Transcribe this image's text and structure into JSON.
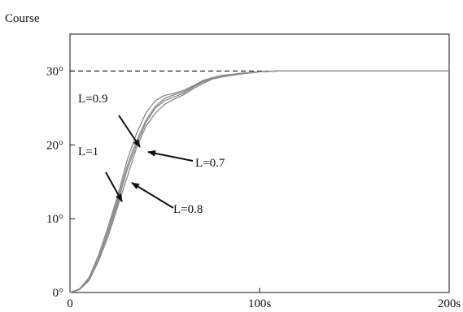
{
  "chart_data": {
    "type": "line",
    "ylabel": "Course",
    "xlabel": "",
    "xlim": [
      0,
      200
    ],
    "ylim": [
      0,
      35
    ],
    "x_ticks": [
      {
        "value": 0,
        "label": "0"
      },
      {
        "value": 100,
        "label": "100s"
      },
      {
        "value": 200,
        "label": "200s"
      }
    ],
    "y_ticks": [
      {
        "value": 0,
        "label": "0°"
      },
      {
        "value": 10,
        "label": "10°"
      },
      {
        "value": 20,
        "label": "20°"
      },
      {
        "value": 30,
        "label": "30°"
      }
    ],
    "reference_line": {
      "y": 30,
      "style": "dashed"
    },
    "series": [
      {
        "name": "L=1",
        "x": [
          0,
          5,
          10,
          15,
          20,
          25,
          30,
          35,
          40,
          45,
          50,
          55,
          60,
          65,
          70,
          75,
          80,
          90,
          100,
          110,
          120,
          140,
          160,
          180,
          200
        ],
        "values": [
          0,
          0.4,
          1.8,
          4.5,
          8.0,
          12.0,
          16.5,
          20.0,
          23.0,
          25.0,
          26.0,
          26.5,
          27.0,
          27.8,
          28.5,
          29.0,
          29.3,
          29.6,
          29.9,
          30.0,
          30.0,
          30.0,
          30.0,
          30.0,
          30.0
        ]
      },
      {
        "name": "L=0.9",
        "x": [
          0,
          5,
          10,
          15,
          20,
          25,
          30,
          35,
          40,
          45,
          50,
          55,
          60,
          65,
          70,
          75,
          80,
          90,
          100,
          110,
          120,
          140,
          160,
          180,
          200
        ],
        "values": [
          0,
          0.5,
          2.0,
          5.0,
          8.8,
          13.0,
          17.8,
          21.5,
          24.3,
          26.0,
          26.7,
          27.0,
          27.4,
          28.0,
          28.7,
          29.1,
          29.4,
          29.7,
          29.9,
          30.0,
          30.0,
          30.0,
          30.0,
          30.0,
          30.0
        ]
      },
      {
        "name": "L=0.8",
        "x": [
          0,
          5,
          10,
          15,
          20,
          25,
          30,
          35,
          40,
          45,
          50,
          55,
          60,
          65,
          70,
          75,
          80,
          90,
          100,
          110,
          120,
          140,
          160,
          180,
          200
        ],
        "values": [
          0,
          0.4,
          1.6,
          4.2,
          7.5,
          11.5,
          15.5,
          19.5,
          22.5,
          24.3,
          25.5,
          26.2,
          26.8,
          27.6,
          28.3,
          28.9,
          29.2,
          29.6,
          29.9,
          30.0,
          30.0,
          30.0,
          30.0,
          30.0,
          30.0
        ]
      },
      {
        "name": "L=0.7",
        "x": [
          0,
          5,
          10,
          15,
          20,
          25,
          30,
          35,
          40,
          45,
          50,
          55,
          60,
          65,
          70,
          75,
          80,
          90,
          100,
          110,
          120,
          140,
          160,
          180,
          200
        ],
        "values": [
          0,
          0.4,
          1.7,
          4.6,
          8.3,
          12.5,
          17.0,
          20.5,
          23.3,
          25.2,
          26.3,
          26.8,
          27.2,
          27.9,
          28.6,
          29.0,
          29.3,
          29.7,
          29.9,
          30.0,
          30.0,
          30.0,
          30.0,
          30.0,
          30.0
        ]
      }
    ],
    "annotations": [
      {
        "text": "L=0.9",
        "target_series": "L=0.9"
      },
      {
        "text": "L=1",
        "target_series": "L=1"
      },
      {
        "text": "L=0.7",
        "target_series": "L=0.7"
      },
      {
        "text": "L=0.8",
        "target_series": "L=0.8"
      }
    ],
    "colors": {
      "axis": "#111111",
      "curve": "#8a8a8a",
      "reference": "#111111",
      "background": "#ffffff"
    }
  }
}
